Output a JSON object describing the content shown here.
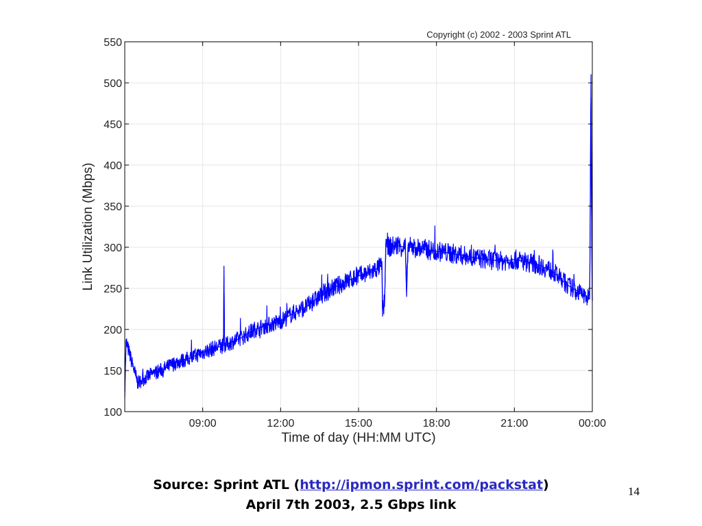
{
  "chart_data": {
    "type": "line",
    "copyright": "Copyright (c) 2002 - 2003 Sprint ATL",
    "xlabel": "Time of day (HH:MM UTC)",
    "ylabel": "Link Utilization (Mbps)",
    "x_unit": "hours UTC (24 = 00:00 next day)",
    "xlim": [
      6.0,
      24.0
    ],
    "ylim": [
      100,
      550
    ],
    "x_ticks": [
      {
        "value": 9,
        "label": "09:00"
      },
      {
        "value": 12,
        "label": "12:00"
      },
      {
        "value": 15,
        "label": "15:00"
      },
      {
        "value": 18,
        "label": "18:00"
      },
      {
        "value": 21,
        "label": "21:00"
      },
      {
        "value": 24,
        "label": "00:00"
      }
    ],
    "y_ticks": [
      {
        "value": 100,
        "label": "100"
      },
      {
        "value": 150,
        "label": "150"
      },
      {
        "value": 200,
        "label": "200"
      },
      {
        "value": 250,
        "label": "250"
      },
      {
        "value": 300,
        "label": "300"
      },
      {
        "value": 350,
        "label": "350"
      },
      {
        "value": 400,
        "label": "400"
      },
      {
        "value": 450,
        "label": "450"
      },
      {
        "value": 500,
        "label": "500"
      },
      {
        "value": 550,
        "label": "550"
      }
    ],
    "grid": true,
    "series": [
      {
        "color": "#0000ff",
        "x": [
          6.0,
          6.05,
          6.5,
          7.0,
          7.5,
          8.0,
          8.5,
          9.0,
          9.5,
          9.8,
          9.82,
          9.84,
          10.0,
          10.5,
          11.0,
          11.5,
          12.0,
          12.5,
          13.0,
          13.5,
          14.0,
          14.5,
          15.0,
          15.5,
          15.9,
          15.92,
          16.0,
          16.05,
          16.1,
          16.5,
          16.8,
          16.85,
          16.9,
          17.0,
          17.5,
          18.0,
          18.5,
          19.0,
          19.5,
          20.0,
          20.5,
          21.0,
          21.5,
          22.0,
          22.5,
          23.0,
          23.5,
          23.9,
          23.95,
          23.97,
          24.0
        ],
        "y": [
          125,
          185,
          135,
          145,
          152,
          160,
          165,
          172,
          178,
          180,
          277,
          180,
          183,
          190,
          200,
          205,
          210,
          220,
          228,
          240,
          250,
          258,
          265,
          270,
          278,
          225,
          228,
          305,
          300,
          302,
          300,
          240,
          300,
          300,
          298,
          295,
          293,
          290,
          287,
          285,
          283,
          285,
          282,
          278,
          270,
          255,
          245,
          237,
          510,
          350,
          235
        ]
      }
    ]
  },
  "footer": {
    "source_prefix": "Source: Sprint ATL (",
    "source_link": "http://ipmon.sprint.com/packstat",
    "source_suffix": ")",
    "line2": "April 7th 2003, 2.5 Gbps link",
    "page_number": "14"
  }
}
